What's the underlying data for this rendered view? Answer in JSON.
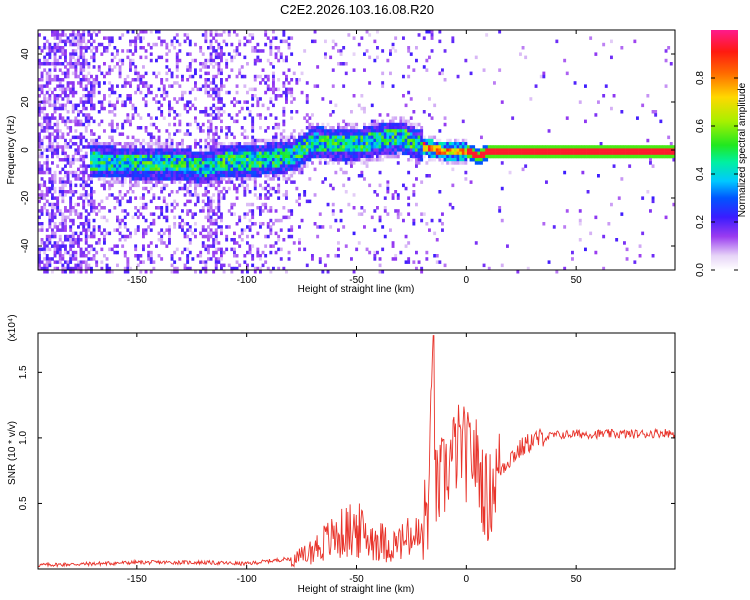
{
  "title": "C2E2.2026.103.16.08.R20",
  "spectrogram": {
    "xlabel": "Height of straight line (km)",
    "ylabel": "Frequency (Hz)",
    "xlim": [
      -195,
      95
    ],
    "ylim": [
      -50,
      50
    ],
    "xticks": [
      "-150",
      "-100",
      "-50",
      "0",
      "50"
    ],
    "xtick_values": [
      -150,
      -100,
      -50,
      0,
      50
    ],
    "yticks": [
      "-40",
      "-20",
      "0",
      "20",
      "40"
    ],
    "ytick_values": [
      -40,
      -20,
      0,
      20,
      40
    ]
  },
  "colorbar": {
    "label": "Normalized spectral amplitude",
    "ticks": [
      "0.0",
      "0.2",
      "0.4",
      "0.6",
      "0.8"
    ],
    "tick_values": [
      0.0,
      0.2,
      0.4,
      0.6,
      0.8
    ],
    "range": [
      0,
      1
    ]
  },
  "chart_data": [
    {
      "type": "heatmap",
      "title": "C2E2.2026.103.16.08.R20",
      "xlabel": "Height of straight line (km)",
      "ylabel": "Frequency (Hz)",
      "xlim": [
        -195,
        95
      ],
      "ylim": [
        -50,
        50
      ],
      "ridge_center_hz": {
        "x": [
          -170,
          -150,
          -130,
          -120,
          -110,
          -100,
          -90,
          -80,
          -70,
          -60,
          -50,
          -40,
          -30,
          -20,
          -10,
          0,
          5,
          10,
          20,
          50,
          95
        ],
        "y": [
          -4,
          -5,
          -5,
          -7,
          -4,
          -4,
          -3,
          -2,
          4,
          3,
          3,
          5,
          6,
          2,
          0,
          0,
          -2,
          0,
          0,
          0,
          0
        ]
      },
      "colorbar_label": "Normalized spectral amplitude"
    },
    {
      "type": "line",
      "xlabel": "Height of straight line (km)",
      "ylabel": "SNR (10 * v/v)",
      "y_multiplier": "(x10⁴)",
      "xlim": [
        -195,
        95
      ],
      "ylim": [
        0,
        1.8
      ],
      "xticks": [
        "-150",
        "-100",
        "-50",
        "0",
        "50"
      ],
      "xtick_values": [
        -150,
        -100,
        -50,
        0,
        50
      ],
      "yticks": [
        "0.5",
        "1.0",
        "1.5"
      ],
      "ytick_values": [
        0.5,
        1.0,
        1.5
      ],
      "series": [
        {
          "name": "SNR",
          "color": "#e8332a",
          "x": [
            -195,
            -170,
            -150,
            -120,
            -100,
            -90,
            -80,
            -75,
            -70,
            -65,
            -60,
            -55,
            -50,
            -45,
            -40,
            -35,
            -30,
            -25,
            -20,
            -17,
            -15,
            -14,
            -12,
            -10,
            -8,
            -5,
            -2,
            0,
            3,
            6,
            8,
            10,
            12,
            15,
            20,
            25,
            30,
            35,
            40,
            50,
            60,
            70,
            80,
            90,
            95
          ],
          "y": [
            0.03,
            0.04,
            0.05,
            0.05,
            0.04,
            0.06,
            0.08,
            0.12,
            0.18,
            0.25,
            0.3,
            0.35,
            0.38,
            0.3,
            0.28,
            0.22,
            0.25,
            0.3,
            0.3,
            0.5,
            1.75,
            0.55,
            0.65,
            0.7,
            0.8,
            0.9,
            0.95,
            0.85,
            0.9,
            0.75,
            0.6,
            0.5,
            0.65,
            0.75,
            0.85,
            0.92,
            0.98,
            1.0,
            1.02,
            1.03,
            1.03,
            1.03,
            1.03,
            1.04,
            1.03
          ]
        }
      ]
    }
  ],
  "snr": {
    "xlabel": "Height of straight line (km)",
    "ylabel": "SNR (10 * v/v)",
    "multiplier": "(x10⁴)",
    "xlim": [
      -195,
      95
    ],
    "ylim": [
      0,
      1.8
    ],
    "xticks": [
      "-150",
      "-100",
      "-50",
      "0",
      "50"
    ],
    "xtick_values": [
      -150,
      -100,
      -50,
      0,
      50
    ],
    "yticks": [
      "0.5",
      "1.0",
      "1.5"
    ],
    "ytick_values": [
      0.5,
      1.0,
      1.5
    ]
  }
}
